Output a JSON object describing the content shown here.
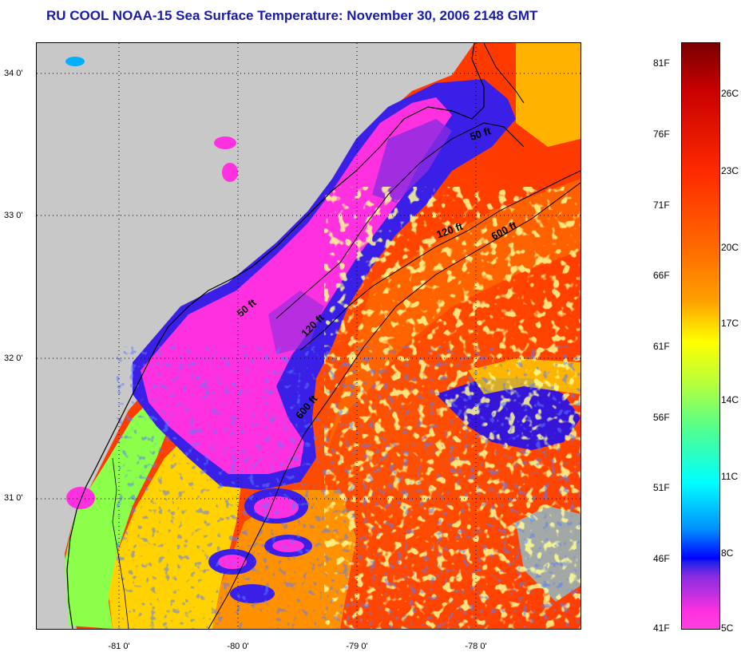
{
  "title": "RU COOL  NOAA-15  Sea Surface Temperature:  November 30, 2006 2148 GMT",
  "map": {
    "latitude_labels": [
      "34 0'",
      "33 0'",
      "32 0'",
      "31 0'"
    ],
    "longitude_labels": [
      "-81 0'",
      "-80 0'",
      "-79 0'",
      "-78 0'"
    ],
    "contour_labels": {
      "north_50": "50 ft",
      "shelf_120": "120 ft",
      "shelf_600": "600 ft",
      "south_50": "50 ft",
      "south_120": "120 ft",
      "south_600": "600 ft"
    },
    "colors": {
      "land": "#c8c8c8",
      "coldest": "#ff30e0",
      "cold": "#0000ff",
      "warm": "#ff6a00",
      "hot": "#ff2a00"
    }
  },
  "colorbar": {
    "fahrenheit_labels": [
      "81F",
      "76F",
      "71F",
      "66F",
      "61F",
      "56F",
      "51F",
      "46F",
      "41F"
    ],
    "celsius_labels": [
      "26C",
      "23C",
      "20C",
      "17C",
      "14C",
      "11C",
      "8C",
      "5C"
    ],
    "range_c": [
      5,
      27.5
    ],
    "range_f": [
      41,
      81.5
    ]
  }
}
